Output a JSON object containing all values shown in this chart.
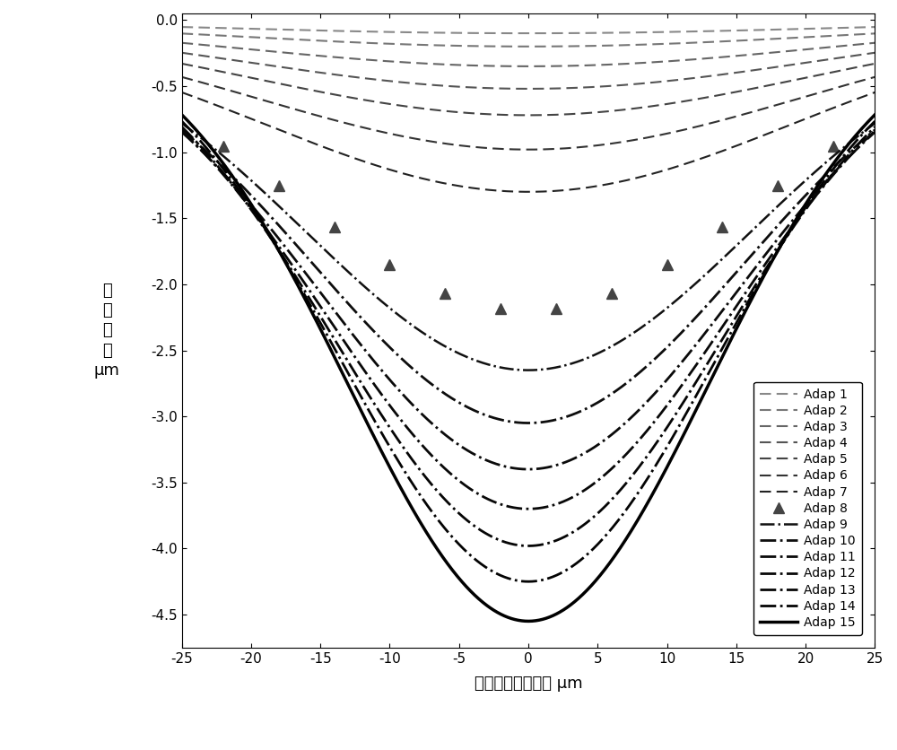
{
  "xlabel": "距离光斑中心距离 μm",
  "ylabel_lines": [
    "烧",
    "蚀",
    "深",
    "度",
    "μm"
  ],
  "xlim": [
    -25,
    25
  ],
  "ylim": [
    -4.75,
    0.05
  ],
  "yticks": [
    0,
    -0.5,
    -1.0,
    -1.5,
    -2.0,
    -2.5,
    -3.0,
    -3.5,
    -4.0,
    -4.5
  ],
  "xticks": [
    -25,
    -20,
    -15,
    -10,
    -5,
    0,
    5,
    10,
    15,
    20,
    25
  ],
  "curves": [
    {
      "label": "Adap 1",
      "depth": 0.1,
      "sigma": 22.0,
      "style": "dashed",
      "color": "#888888",
      "lw": 1.5,
      "marker": null,
      "n": 2
    },
    {
      "label": "Adap 2",
      "depth": 0.2,
      "sigma": 21.5,
      "style": "dashed",
      "color": "#777777",
      "lw": 1.5,
      "marker": null,
      "n": 2
    },
    {
      "label": "Adap 3",
      "depth": 0.35,
      "sigma": 21.0,
      "style": "dashed",
      "color": "#666666",
      "lw": 1.5,
      "marker": null,
      "n": 2
    },
    {
      "label": "Adap 4",
      "depth": 0.52,
      "sigma": 20.5,
      "style": "dashed",
      "color": "#555555",
      "lw": 1.5,
      "marker": null,
      "n": 2
    },
    {
      "label": "Adap 5",
      "depth": 0.72,
      "sigma": 20.0,
      "style": "dashed",
      "color": "#444444",
      "lw": 1.5,
      "marker": null,
      "n": 2
    },
    {
      "label": "Adap 6",
      "depth": 0.98,
      "sigma": 19.5,
      "style": "dashed",
      "color": "#333333",
      "lw": 1.5,
      "marker": null,
      "n": 2
    },
    {
      "label": "Adap 7",
      "depth": 1.3,
      "sigma": 19.0,
      "style": "dashed",
      "color": "#222222",
      "lw": 1.5,
      "marker": null,
      "n": 2
    },
    {
      "label": "Adap 8",
      "depth": 2.2,
      "sigma": 17.0,
      "style": "none",
      "color": "#444444",
      "lw": 0,
      "marker": "^",
      "n": 2
    },
    {
      "label": "Adap 9",
      "depth": 2.65,
      "sigma": 16.0,
      "style": "dashdot",
      "color": "#111111",
      "lw": 1.8,
      "marker": null,
      "n": 2
    },
    {
      "label": "Adap 10",
      "depth": 3.05,
      "sigma": 15.5,
      "style": "dashdot",
      "color": "#0d0d0d",
      "lw": 2.0,
      "marker": null,
      "n": 2
    },
    {
      "label": "Adap 11",
      "depth": 3.4,
      "sigma": 15.0,
      "style": "dashdot",
      "color": "#0a0a0a",
      "lw": 2.0,
      "marker": null,
      "n": 2
    },
    {
      "label": "Adap 12",
      "depth": 3.7,
      "sigma": 14.5,
      "style": "dashdot",
      "color": "#080808",
      "lw": 2.0,
      "marker": null,
      "n": 2
    },
    {
      "label": "Adap 13",
      "depth": 3.98,
      "sigma": 14.0,
      "style": "dashdot",
      "color": "#050505",
      "lw": 2.0,
      "marker": null,
      "n": 2
    },
    {
      "label": "Adap 14",
      "depth": 4.25,
      "sigma": 13.5,
      "style": "dashdot",
      "color": "#030303",
      "lw": 2.0,
      "marker": null,
      "n": 2
    },
    {
      "label": "Adap 15",
      "depth": 4.55,
      "sigma": 13.0,
      "style": "solid",
      "color": "#000000",
      "lw": 2.5,
      "marker": null,
      "n": 2
    }
  ],
  "adap8_x_markers": [
    -22,
    -18,
    -14,
    -10,
    -6,
    -2,
    2,
    6,
    10,
    14,
    18,
    22
  ],
  "background_color": "#ffffff",
  "legend_fontsize": 10,
  "axis_fontsize": 13,
  "tick_fontsize": 11
}
